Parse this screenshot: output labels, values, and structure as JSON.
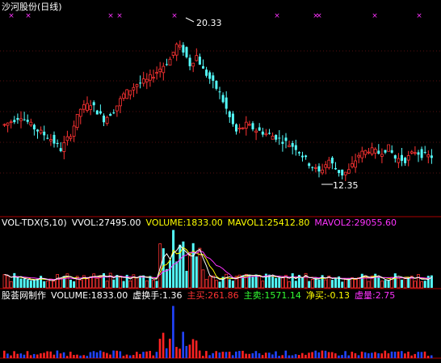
{
  "chart_data": [
    {
      "type": "candlestick",
      "title": "沙河股份(日线)",
      "max_annotation": "20.33",
      "min_annotation": "12.35",
      "up_color": "#ff3333",
      "down_color": "#54fcfc",
      "marker_color": "#ff33ff",
      "ylim": [
        11.0,
        22.2
      ]
    },
    {
      "type": "bar",
      "indicator": "VOL-TDX(5,10)",
      "readouts": [
        {
          "text": "VOL-TDX(5,10)",
          "color": "#ffffff"
        },
        {
          "text": "VVOL:27495.00",
          "color": "#ffffff"
        },
        {
          "text": "VOLUME:1833.00",
          "color": "#ffff00"
        },
        {
          "text": "MAVOL1:25412.80",
          "color": "#ffff00"
        },
        {
          "text": "MAVOL2:29055.60",
          "color": "#ff33ff"
        }
      ]
    },
    {
      "type": "bar",
      "indicator": "股荟网制作",
      "readouts": [
        {
          "text": "股荟网制作",
          "color": "#ffffff"
        },
        {
          "text": "VOLUME:1833.00",
          "color": "#ffffff"
        },
        {
          "text": "虚换手:1.36",
          "color": "#ffffff"
        },
        {
          "text": "主买:261.86",
          "color": "#ff3333"
        },
        {
          "text": "主卖:1571.14",
          "color": "#33ff33"
        },
        {
          "text": "净买:-0.13",
          "color": "#ffff00"
        },
        {
          "text": "虚量:2.75",
          "color": "#ff33ff"
        }
      ]
    }
  ]
}
